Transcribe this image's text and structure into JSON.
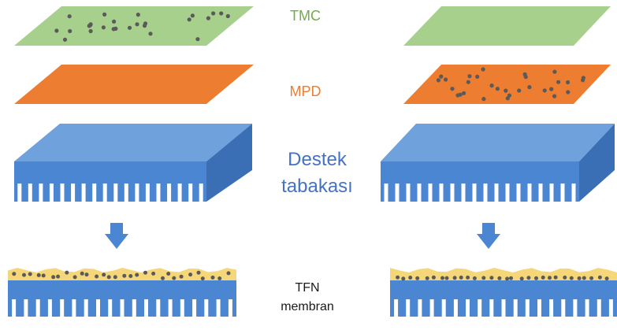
{
  "labels": {
    "tmc": "TMC",
    "mpd": "MPD",
    "support_line1": "Destek",
    "support_line2": "tabakası",
    "tfn_line1": "TFN",
    "tfn_line2": "membran"
  },
  "colors": {
    "tmc_fill": "#a8d08d",
    "tmc_label": "#70ad47",
    "mpd_fill": "#ed7d31",
    "mpd_label": "#ed7d31",
    "support_top": "#6fa1dd",
    "support_front": "#4a86d1",
    "support_side": "#3a6fb5",
    "support_label": "#4472c4",
    "arrow": "#4a86d1",
    "tfn_layer": "#f5d77a",
    "particle": "#5a5a5a"
  }
}
